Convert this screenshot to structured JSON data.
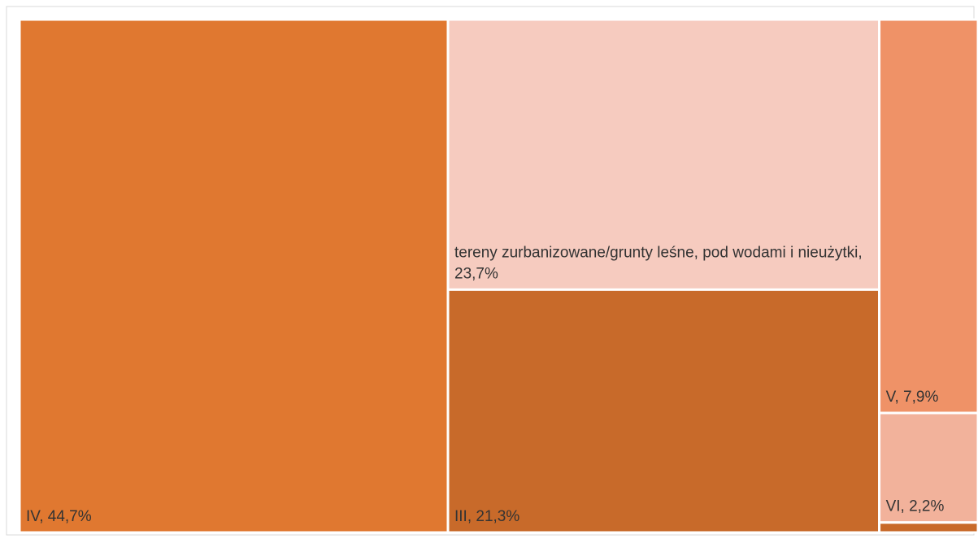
{
  "chart_data": {
    "type": "treemap",
    "categories": [
      "IV, 44,7%",
      "tereny zurbanizowane/grunty leśne, pod wodami i nieużytki, 23,7%",
      "III, 21,3%",
      "V, 7,9%",
      "VI, 2,2%",
      null
    ],
    "values": [
      44.7,
      23.7,
      21.3,
      7.9,
      2.2,
      0.2
    ],
    "colors": [
      "#e07830",
      "#f6cbbf",
      "#c86a2a",
      "#ef9267",
      "#f2b29b",
      "#c86a2a"
    ]
  }
}
